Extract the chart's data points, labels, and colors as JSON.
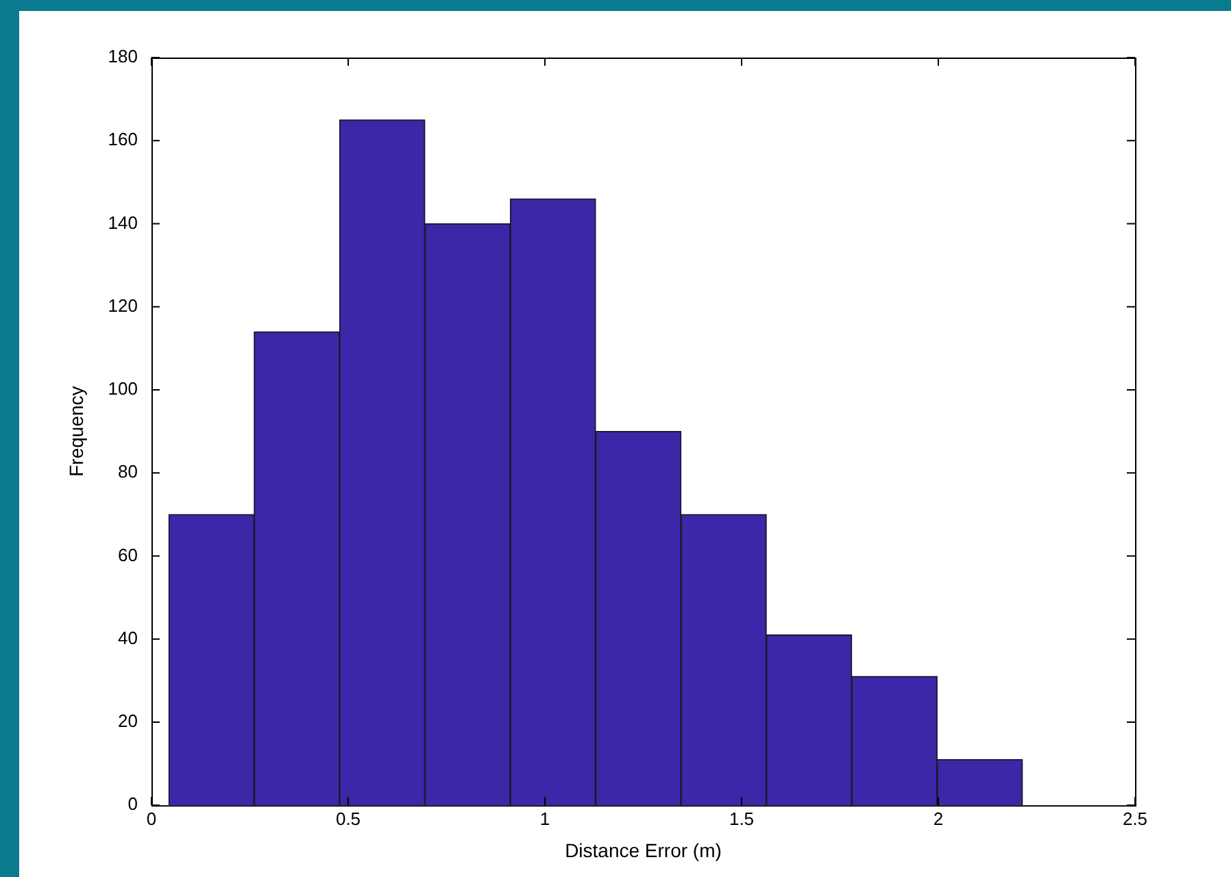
{
  "chart_data": {
    "type": "histogram",
    "xlabel": "Distance Error (m)",
    "ylabel": "Frequency",
    "bins": [
      0.044,
      0.261,
      0.478,
      0.695,
      0.912,
      1.129,
      1.346,
      1.563,
      1.78,
      1.997,
      2.214
    ],
    "values": [
      70,
      114,
      165,
      140,
      146,
      90,
      70,
      41,
      31,
      11
    ],
    "color": "#3d27a8",
    "xlim": [
      0,
      2.5
    ],
    "xticks": [
      0,
      0.5,
      1,
      1.5,
      2,
      2.5
    ],
    "ylim": [
      0,
      180
    ],
    "yticks": [
      0,
      20,
      40,
      60,
      80,
      100,
      120,
      140,
      160,
      180
    ],
    "grid": false,
    "legend": false
  }
}
